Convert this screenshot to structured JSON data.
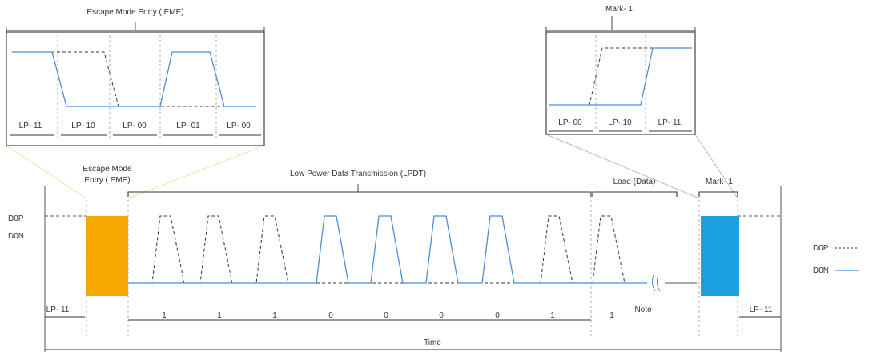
{
  "labels": {
    "eme_inset_title": "Escape Mode Entry ( EME)",
    "eme_seq": [
      "LP- 11",
      "LP- 10",
      "LP- 00",
      "LP- 01",
      "LP- 00"
    ],
    "mark_inset_title": "Mark- 1",
    "mark_seq": [
      "LP- 00",
      "LP- 10",
      "LP- 11"
    ],
    "signal_dp": "D0P",
    "signal_dn": "D0N",
    "eme_label_line1": "Escape Mode",
    "eme_label_line2": "Entry ( EME)",
    "lpdt_label": "Low Power Data Transmission (LPDT)",
    "load_label": "Load (Data)",
    "mark_label": "Mark- 1",
    "lp11_left": "LP- 11",
    "lp11_right": "LP- 11",
    "bits": [
      "1",
      "1",
      "1",
      "0",
      "0",
      "0",
      "0",
      "1",
      "1"
    ],
    "note": "Note",
    "time": "Time"
  },
  "legend": [
    {
      "label": "D0P",
      "style": "dashed",
      "color": "#333333"
    },
    {
      "label": "D0N",
      "style": "solid",
      "color": "#4a8fd6"
    }
  ],
  "colors": {
    "eme_block": "#f7a800",
    "mark_block": "#1aa0e0",
    "dn_line": "#4a8fd6",
    "dp_line": "#333333",
    "inset_eme_connector": "#f0e0a0",
    "inset_mark_connector": "#b0b8e0"
  }
}
